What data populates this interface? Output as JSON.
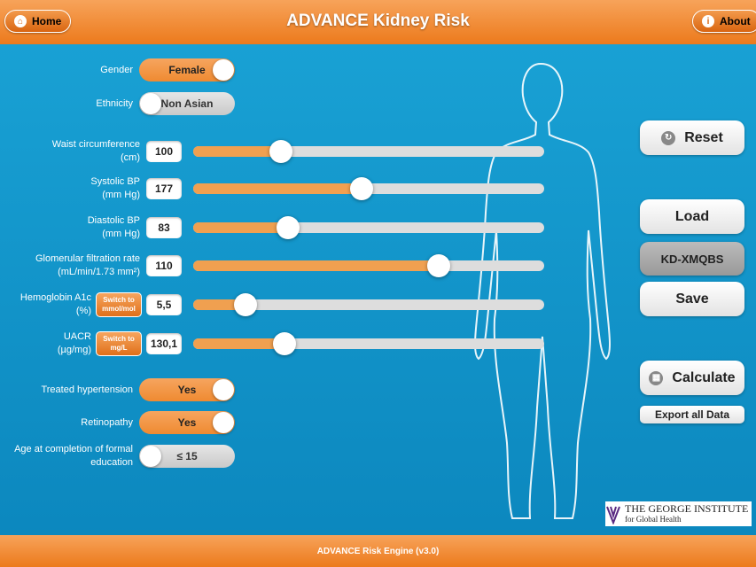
{
  "header": {
    "home": "Home",
    "title": "ADVANCE Kidney Risk",
    "about": "About"
  },
  "toggles_top": [
    {
      "label": [
        "Gender"
      ],
      "value": "Female",
      "on": true
    },
    {
      "label": [
        "Ethnicity"
      ],
      "value": "Non Asian",
      "on": false
    }
  ],
  "fields": [
    {
      "label": [
        "Waist circumference",
        "(cm)"
      ],
      "value": "100"
    },
    {
      "label": [
        "Systolic BP",
        "(mm Hg)"
      ],
      "value": "177"
    },
    {
      "label": [
        "Diastolic BP",
        "(mm Hg)"
      ],
      "value": "83"
    },
    {
      "label": [
        "Glomerular filtration rate",
        "(mL/min/1.73 mm²)"
      ],
      "value": "110"
    },
    {
      "label": [
        "Hemoglobin A1c",
        "(%)"
      ],
      "switch": [
        "Switch to",
        "mmol/mol"
      ],
      "value": "5,5"
    },
    {
      "label": [
        "UACR",
        "(µg/mg)"
      ],
      "switch": [
        "Switch to",
        "mg/L"
      ],
      "value": "130,1"
    }
  ],
  "toggles_bottom": [
    {
      "label": [
        "Treated hypertension"
      ],
      "value": "Yes",
      "on": true
    },
    {
      "label": [
        "Retinopathy"
      ],
      "value": "Yes",
      "on": true
    },
    {
      "label": [
        "Age at completion of formal",
        "education"
      ],
      "value": "≤ 15",
      "on": false
    }
  ],
  "buttons": {
    "reset": "Reset",
    "load": "Load",
    "code": "KD-XMQBS",
    "save": "Save",
    "calculate": "Calculate",
    "export": "Export all Data"
  },
  "logo": {
    "name": "THE GEORGE INSTITUTE",
    "sub": "for Global Health"
  },
  "footer": "ADVANCE Risk Engine (v3.0)"
}
